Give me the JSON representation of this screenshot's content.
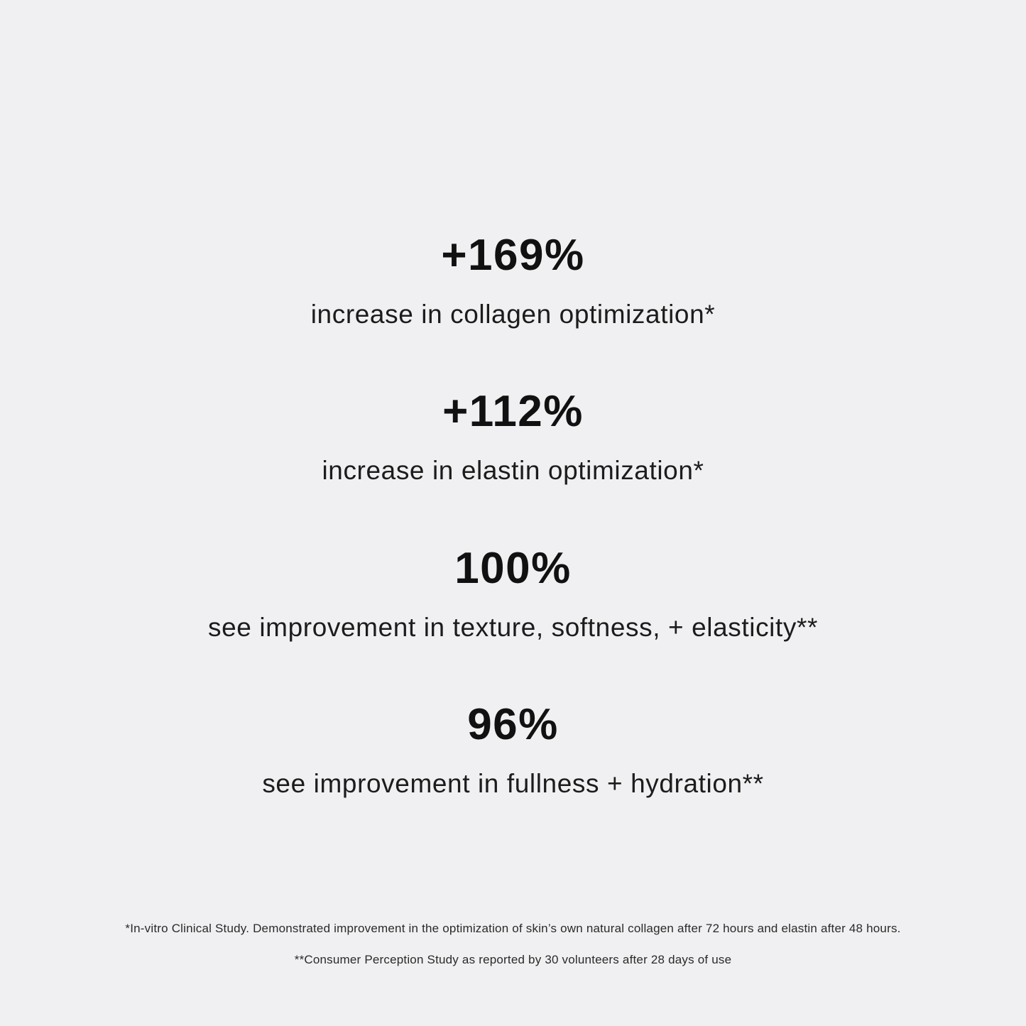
{
  "page": {
    "background_color": "#f0f0f2",
    "text_color": "#111111"
  },
  "stats": [
    {
      "value": "+169%",
      "label": "increase in collagen optimization*"
    },
    {
      "value": "+112%",
      "label": "increase in elastin optimization*"
    },
    {
      "value": "100%",
      "label": "see improvement in texture, softness, + elasticity**"
    },
    {
      "value": "96%",
      "label": "see improvement in fullness + hydration**"
    }
  ],
  "footnotes": [
    "*In-vitro Clinical Study. Demonstrated improvement in the optimization of skin’s own natural collagen after 72 hours and elastin after 48 hours.",
    "**Consumer Perception Study as reported by 30 volunteers after 28 days of use"
  ]
}
